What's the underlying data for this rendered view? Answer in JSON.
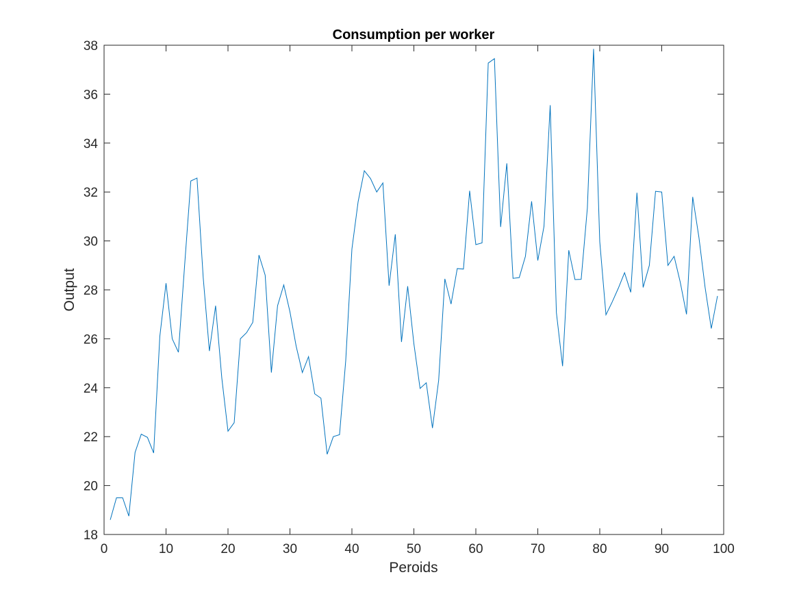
{
  "chart_data": {
    "type": "line",
    "title": "Consumption per worker",
    "xlabel": "Peroids",
    "ylabel": "Output",
    "xlim": [
      0,
      100
    ],
    "ylim": [
      18,
      38
    ],
    "xticks": [
      0,
      10,
      20,
      30,
      40,
      50,
      60,
      70,
      80,
      90,
      100
    ],
    "yticks": [
      18,
      20,
      22,
      24,
      26,
      28,
      30,
      32,
      34,
      36,
      38
    ],
    "grid": false,
    "line_color": "#0072BD",
    "series": [
      {
        "x": [
          1,
          2,
          3,
          4,
          5,
          6,
          7,
          8,
          9,
          10,
          11,
          12,
          13,
          14,
          15,
          16,
          17,
          18,
          19,
          20,
          21,
          22,
          23,
          24,
          25,
          26,
          27,
          28,
          29,
          30,
          31,
          32,
          33,
          34,
          35,
          36,
          37,
          38,
          39,
          40,
          41,
          42,
          43,
          44,
          45,
          46,
          47,
          48,
          49,
          50,
          51,
          52,
          53,
          54,
          55,
          56,
          57,
          58,
          59,
          60,
          61,
          62,
          63,
          64,
          65,
          66,
          67,
          68,
          69,
          70,
          71,
          72,
          73,
          74,
          75,
          76,
          77,
          78,
          79,
          80,
          81,
          82,
          83,
          84,
          85,
          86,
          87,
          88,
          89,
          90,
          91,
          92,
          93,
          94,
          95,
          96,
          97,
          98,
          99
        ],
        "values": [
          18.6,
          19.5,
          19.5,
          18.75,
          21.35,
          22.1,
          21.97,
          21.33,
          26.1,
          28.27,
          26.0,
          25.45,
          29.0,
          32.45,
          32.57,
          28.5,
          25.5,
          27.35,
          24.4,
          22.22,
          22.57,
          26.0,
          26.25,
          26.67,
          29.42,
          28.6,
          24.62,
          27.35,
          28.2,
          27.1,
          25.7,
          24.62,
          25.27,
          23.75,
          23.57,
          21.28,
          22.0,
          22.08,
          25.1,
          29.67,
          31.6,
          32.87,
          32.55,
          32.0,
          32.37,
          28.17,
          30.27,
          25.87,
          28.15,
          25.8,
          23.97,
          24.2,
          22.35,
          24.3,
          28.45,
          27.42,
          28.87,
          28.85,
          32.05,
          29.85,
          29.92,
          37.27,
          37.45,
          30.57,
          33.17,
          28.47,
          28.5,
          29.37,
          31.62,
          29.2,
          30.6,
          35.55,
          27.07,
          24.88,
          29.62,
          28.42,
          28.43,
          31.35,
          37.85,
          29.97,
          26.98,
          27.5,
          28.07,
          28.7,
          27.9,
          31.97,
          28.1,
          29.0,
          32.03,
          32.0,
          29.0,
          29.37,
          28.3,
          27.0,
          31.8,
          30.15,
          28.1,
          26.42,
          27.75
        ]
      }
    ]
  }
}
